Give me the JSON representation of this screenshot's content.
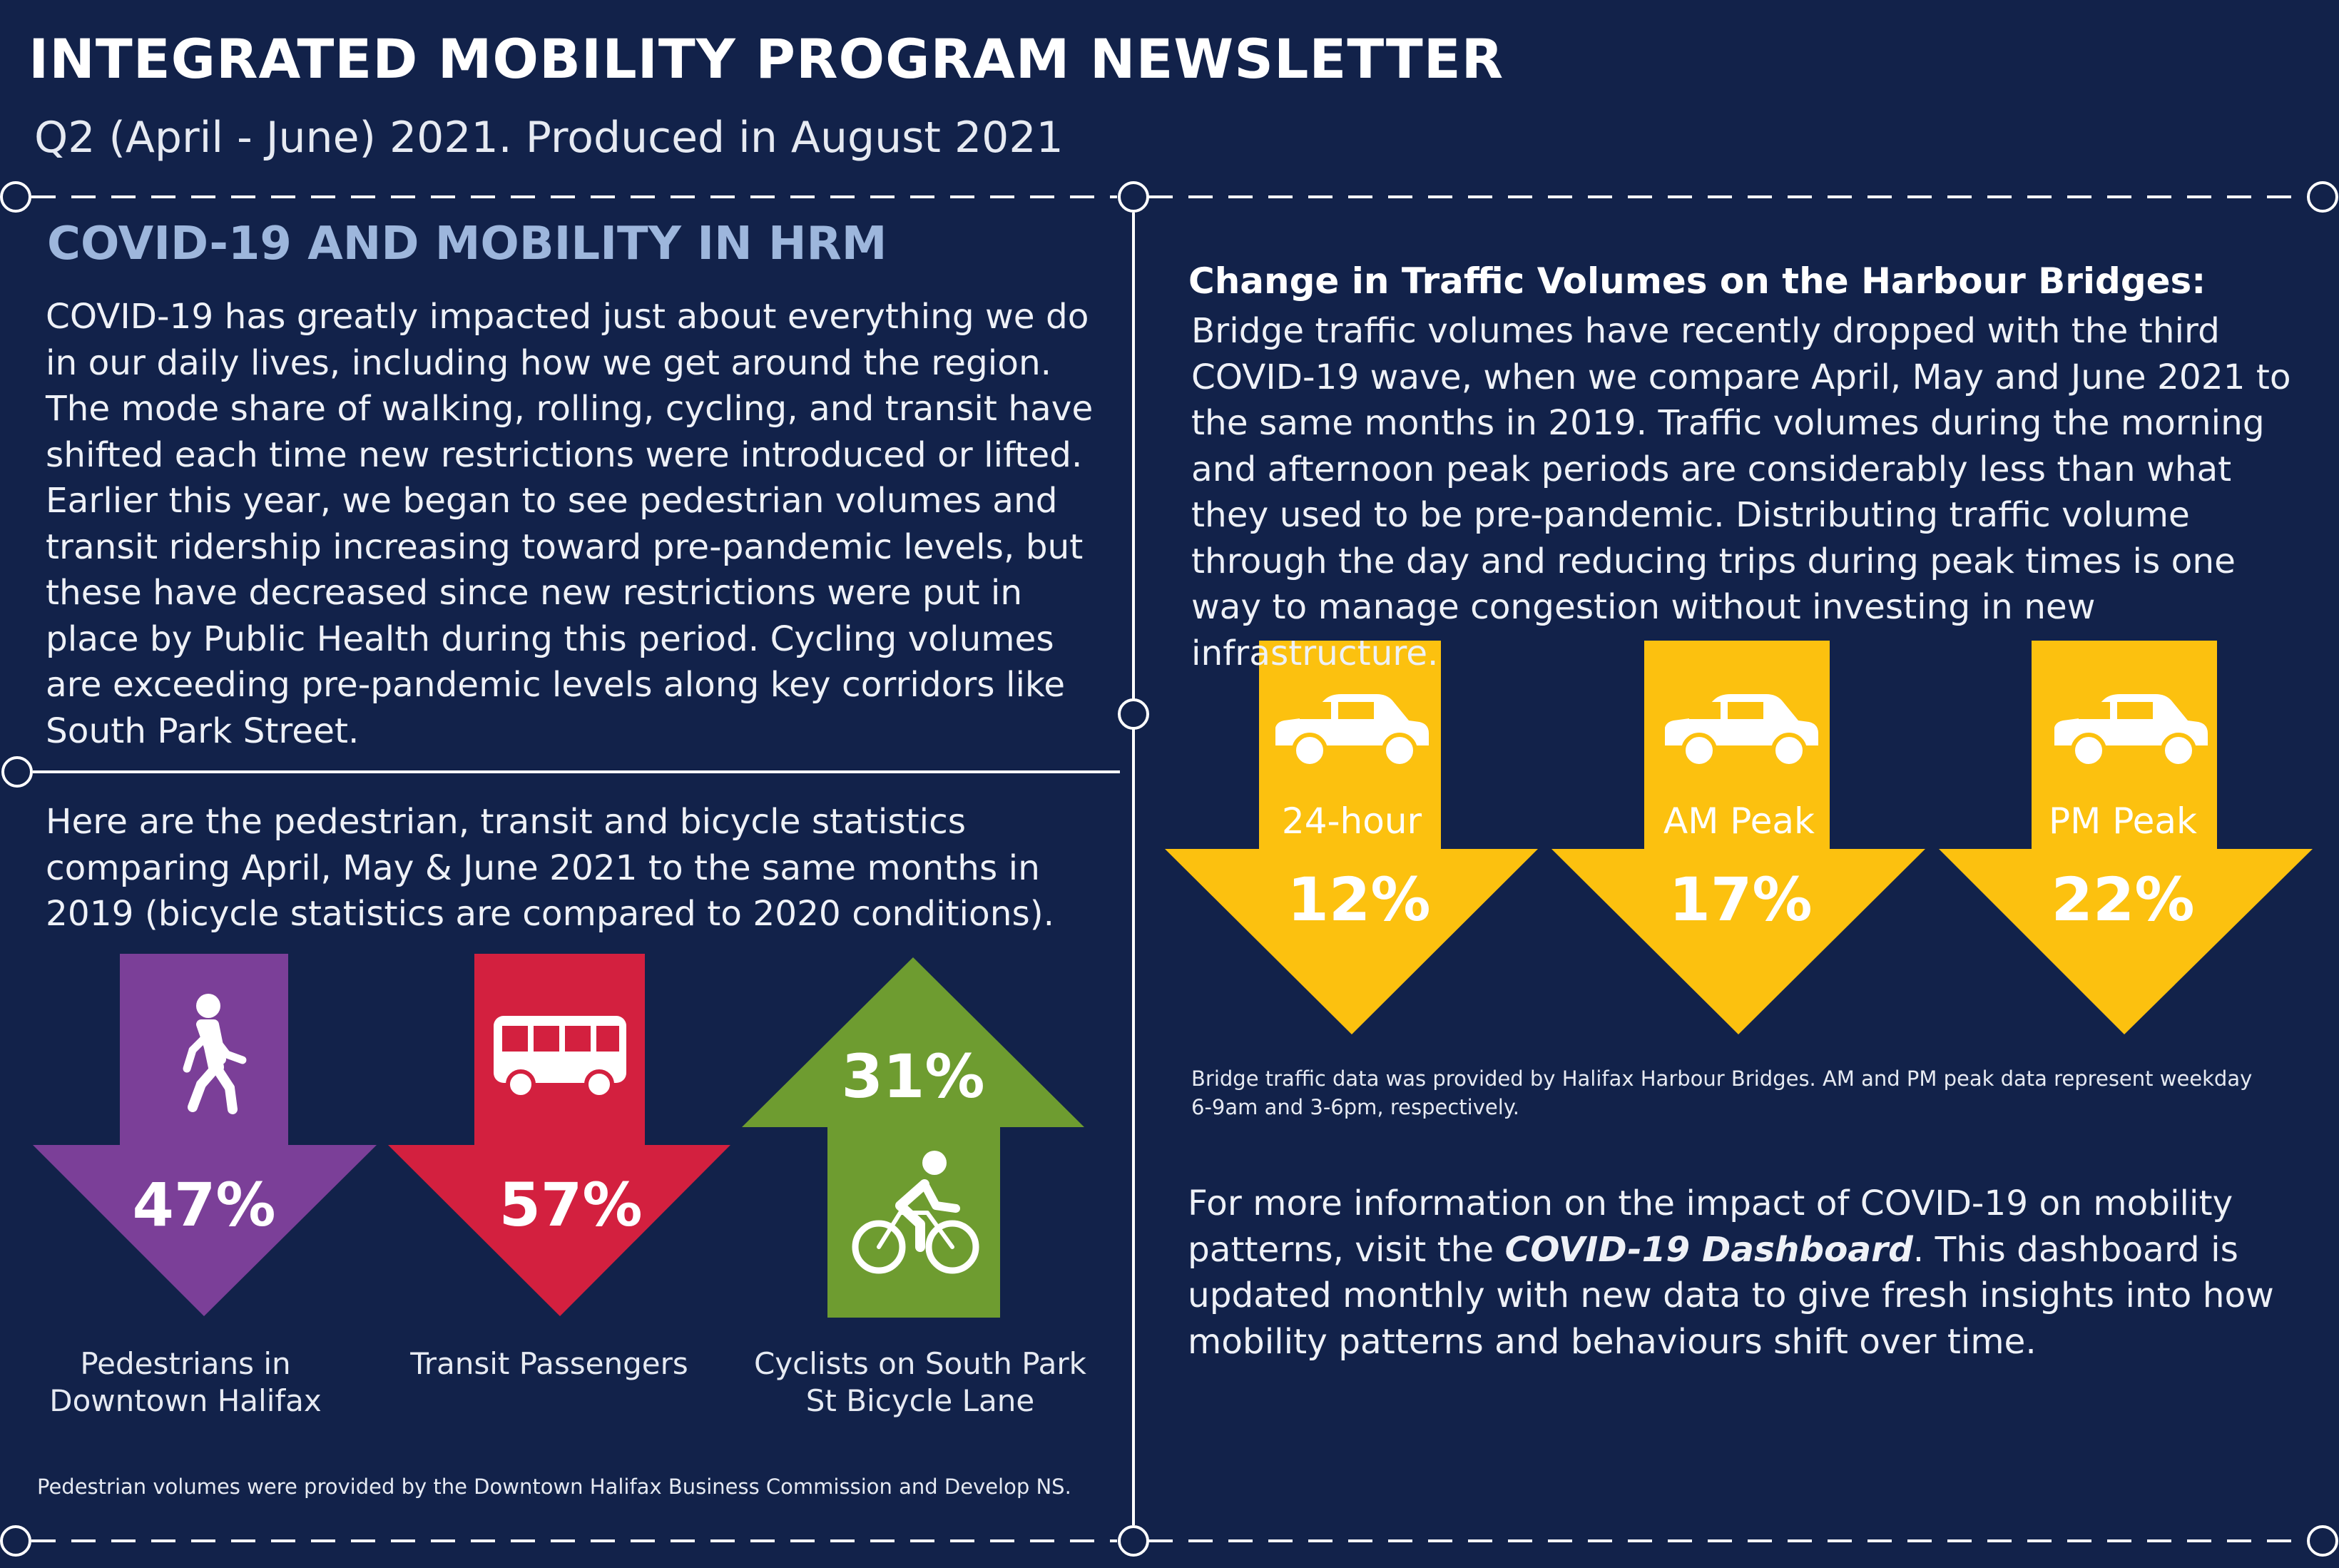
{
  "header": {
    "title": "INTEGRATED MOBILITY PROGRAM NEWSLETTER",
    "subtitle": "Q2 (April - June) 2021. Produced in August 2021"
  },
  "left": {
    "heading": "COVID-19 AND MOBILITY IN HRM",
    "intro": "COVID-19 has greatly impacted just about everything we do in our daily lives, including how we get around the region. The mode share of walking, rolling, cycling, and transit have shifted each time new restrictions were introduced or lifted. Earlier this year, we began to see pedestrian volumes and transit ridership increasing toward pre-pandemic levels, but these have decreased since new restrictions were put in place by Public Health during this period. Cycling volumes are exceeding pre-pandemic levels along key corridors like South Park Street.",
    "stats_intro": "Here are the pedestrian, transit and bicycle statistics comparing April, May & June 2021 to the same months in 2019 (bicycle statistics are compared to 2020 conditions).",
    "stats": [
      {
        "value": "47%",
        "label": "Pedestrians in Downtown Halifax",
        "direction": "down",
        "color": "#7b3f98",
        "icon": "pedestrian-icon"
      },
      {
        "value": "57%",
        "label": "Transit Passengers",
        "direction": "down",
        "color": "#d3203f",
        "icon": "bus-icon"
      },
      {
        "value": "31%",
        "label": "Cyclists on South Park St Bicycle Lane",
        "direction": "up",
        "color": "#6e9c30",
        "icon": "cyclist-icon"
      }
    ],
    "footnote": "Pedestrian volumes were provided by the Downtown Halifax Business Commission and Develop NS."
  },
  "right": {
    "heading": "Change in Traffic Volumes on the Harbour Bridges:",
    "text": "Bridge traffic volumes have recently dropped with the third COVID-19 wave, when we compare April, May and June 2021 to the same months in 2019. Traffic volumes during the morning and afternoon peak periods are considerably less than what they used to be pre-pandemic. Distributing traffic volume through the day and reducing trips during peak times is one way to manage congestion without investing in new infrastructure.",
    "bridges": [
      {
        "label": "24-hour",
        "value": "12%",
        "direction": "down",
        "icon": "car-icon"
      },
      {
        "label": "AM Peak",
        "value": "17%",
        "direction": "down",
        "icon": "car-icon"
      },
      {
        "label": "PM Peak",
        "value": "22%",
        "direction": "down",
        "icon": "car-icon"
      }
    ],
    "bridge_color": "#fcc10f",
    "bridge_note": "Bridge traffic data was provided by Halifax Harbour Bridges. AM and PM peak data represent weekday 6-9am and 3-6pm, respectively.",
    "more_before": "For more information on the impact of COVID-19 on mobility patterns, visit the ",
    "more_link": "COVID-19 Dashboard",
    "more_after": ". This dashboard is updated monthly with new data to give fresh insights into how mobility patterns and behaviours shift over time."
  },
  "colors": {
    "background": "#12224a",
    "heading_blue": "#9db6dc"
  }
}
